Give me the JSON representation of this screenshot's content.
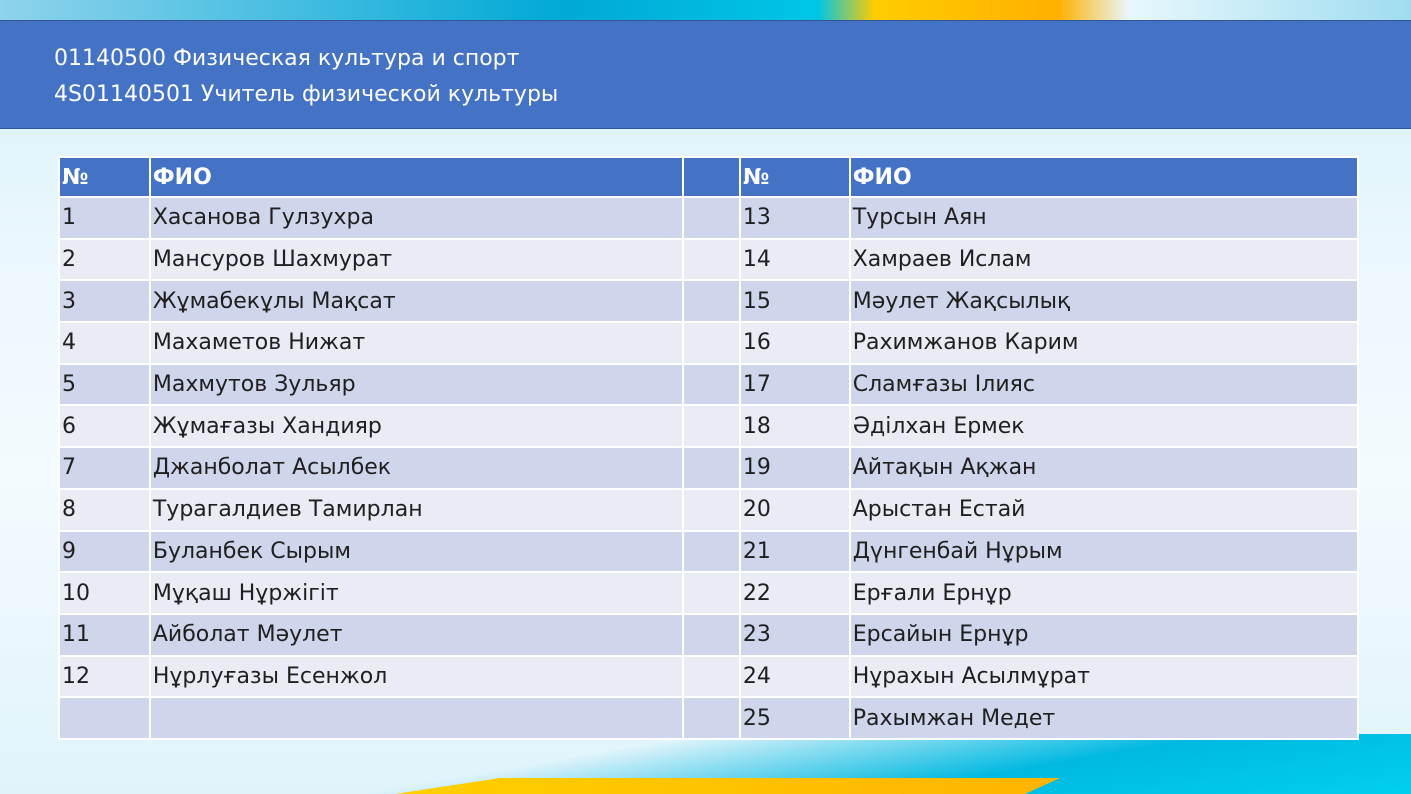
{
  "header": {
    "line1": "01140500 Физическая культура и спорт",
    "line2": "4S01140501 Учитель физической культуры"
  },
  "table": {
    "headers": {
      "num": "№",
      "name": "ФИО"
    },
    "left": [
      [
        "1",
        "Хасанова Гулзухра"
      ],
      [
        "2",
        "Мансуров Шахмурат"
      ],
      [
        "3",
        "Жұмабекұлы Мақсат"
      ],
      [
        "4",
        "Махаметов Нижат"
      ],
      [
        "5",
        "Махмутов Зульяр"
      ],
      [
        "6",
        "Жұмағазы Хандияр"
      ],
      [
        "7",
        "Джанболат Асылбек"
      ],
      [
        "8",
        "Турагалдиев Тамирлан"
      ],
      [
        "9",
        "Буланбек Сырым"
      ],
      [
        "10",
        "Мұқаш Нұржігіт"
      ],
      [
        "11",
        "Айболат Мәулет"
      ],
      [
        "12",
        "Нұрлуғазы Есенжол"
      ],
      [
        "",
        ""
      ]
    ],
    "right": [
      [
        "13",
        "Турсын Аян"
      ],
      [
        "14",
        "Хамраев Ислам"
      ],
      [
        "15",
        "Мәулет Жақсылық"
      ],
      [
        "16",
        "Рахимжанов Карим"
      ],
      [
        "17",
        "Сламғазы Ілияс"
      ],
      [
        "18",
        "Әділхан Ермек"
      ],
      [
        "19",
        "Айтақын Ақжан"
      ],
      [
        "20",
        "Арыстан Естай"
      ],
      [
        "21",
        "Дүнгенбай Нұрым"
      ],
      [
        "22",
        "Ерғали Ернұр"
      ],
      [
        "23",
        "Ерсайын Ернұр"
      ],
      [
        "24",
        "Нұрахын Асылмұрат"
      ],
      [
        "25",
        "Рахымжан Медет"
      ]
    ]
  }
}
